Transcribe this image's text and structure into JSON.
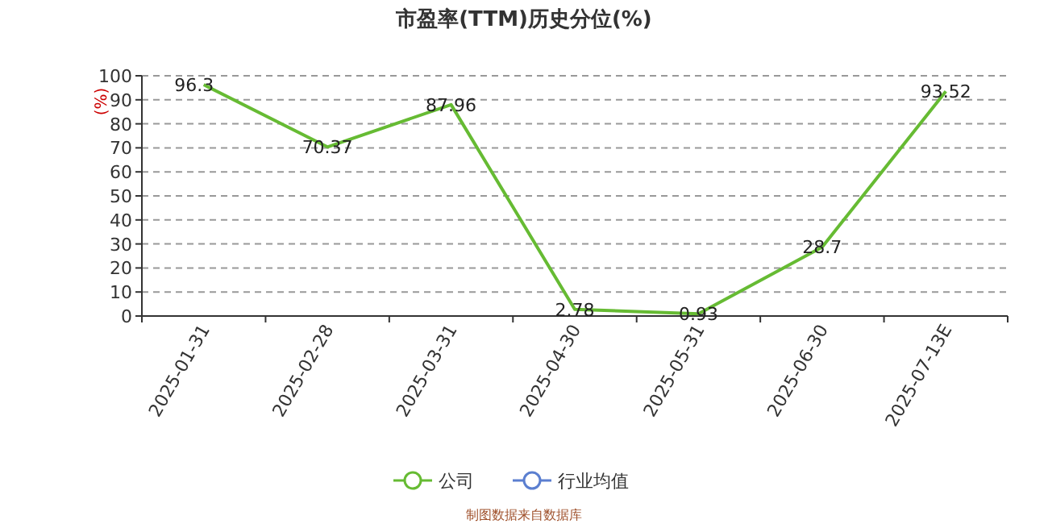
{
  "chart_data": {
    "type": "line",
    "title": "市盈率(TTM)历史分位(%)",
    "ylabel": "(%)",
    "categories": [
      "2025-01-31",
      "2025-02-28",
      "2025-03-31",
      "2025-04-30",
      "2025-05-31",
      "2025-06-30",
      "2025-07-13E"
    ],
    "series": [
      {
        "name": "公司",
        "color": "#66bb33",
        "values": [
          96.3,
          70.37,
          87.96,
          2.78,
          0.93,
          28.7,
          93.52
        ]
      },
      {
        "name": "行业均值",
        "color": "#5b7fd0",
        "values": [
          null,
          null,
          null,
          null,
          null,
          null,
          null
        ]
      }
    ],
    "ylim": [
      0,
      100
    ],
    "yticks": [
      0,
      10,
      20,
      30,
      40,
      50,
      60,
      70,
      80,
      90,
      100
    ],
    "grid": "y",
    "legend": "bottom",
    "marker": "none",
    "line_style": "solid",
    "data_labels": true,
    "annotations": [
      "制图数据来自数据库"
    ]
  }
}
